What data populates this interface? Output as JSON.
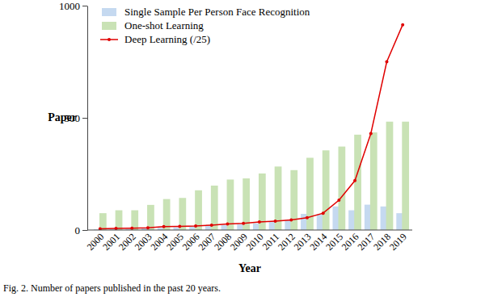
{
  "chart_data": {
    "type": "bar",
    "x_label": "Year",
    "y_label": "Paper",
    "annotations": [
      "Fig. 2. Number of papers published in the past 20 years."
    ],
    "categories": [
      "2000",
      "2001",
      "2002",
      "2003",
      "2004",
      "2005",
      "2006",
      "2007",
      "2008",
      "2009",
      "2010",
      "2011",
      "2012",
      "2013",
      "2014",
      "2015",
      "2016",
      "2017",
      "2018",
      "2019"
    ],
    "series": [
      {
        "name": "Single Sample Per Person Face Recognition",
        "color": "#c5d9f0",
        "type": "bar",
        "values": [
          3,
          5,
          5,
          8,
          10,
          12,
          15,
          20,
          22,
          25,
          30,
          38,
          45,
          72,
          70,
          105,
          88,
          113,
          105,
          75
        ]
      },
      {
        "name": "One-shot Learning",
        "color": "#c9e2b5",
        "type": "bar",
        "values": [
          75,
          88,
          88,
          112,
          138,
          143,
          177,
          198,
          225,
          230,
          252,
          283,
          267,
          322,
          355,
          372,
          425,
          435,
          483,
          483
        ]
      },
      {
        "name": "Deep Learning (/25)",
        "color": "#e00000",
        "type": "line",
        "marker": "circle",
        "values": [
          5,
          7,
          8,
          10,
          15,
          16,
          18,
          22,
          27,
          30,
          36,
          40,
          45,
          55,
          75,
          133,
          220,
          430,
          750,
          915
        ]
      }
    ],
    "ylim": [
      0,
      1000
    ],
    "yticks": [
      0,
      500,
      1000
    ],
    "grid": false,
    "legend": "top-left"
  }
}
